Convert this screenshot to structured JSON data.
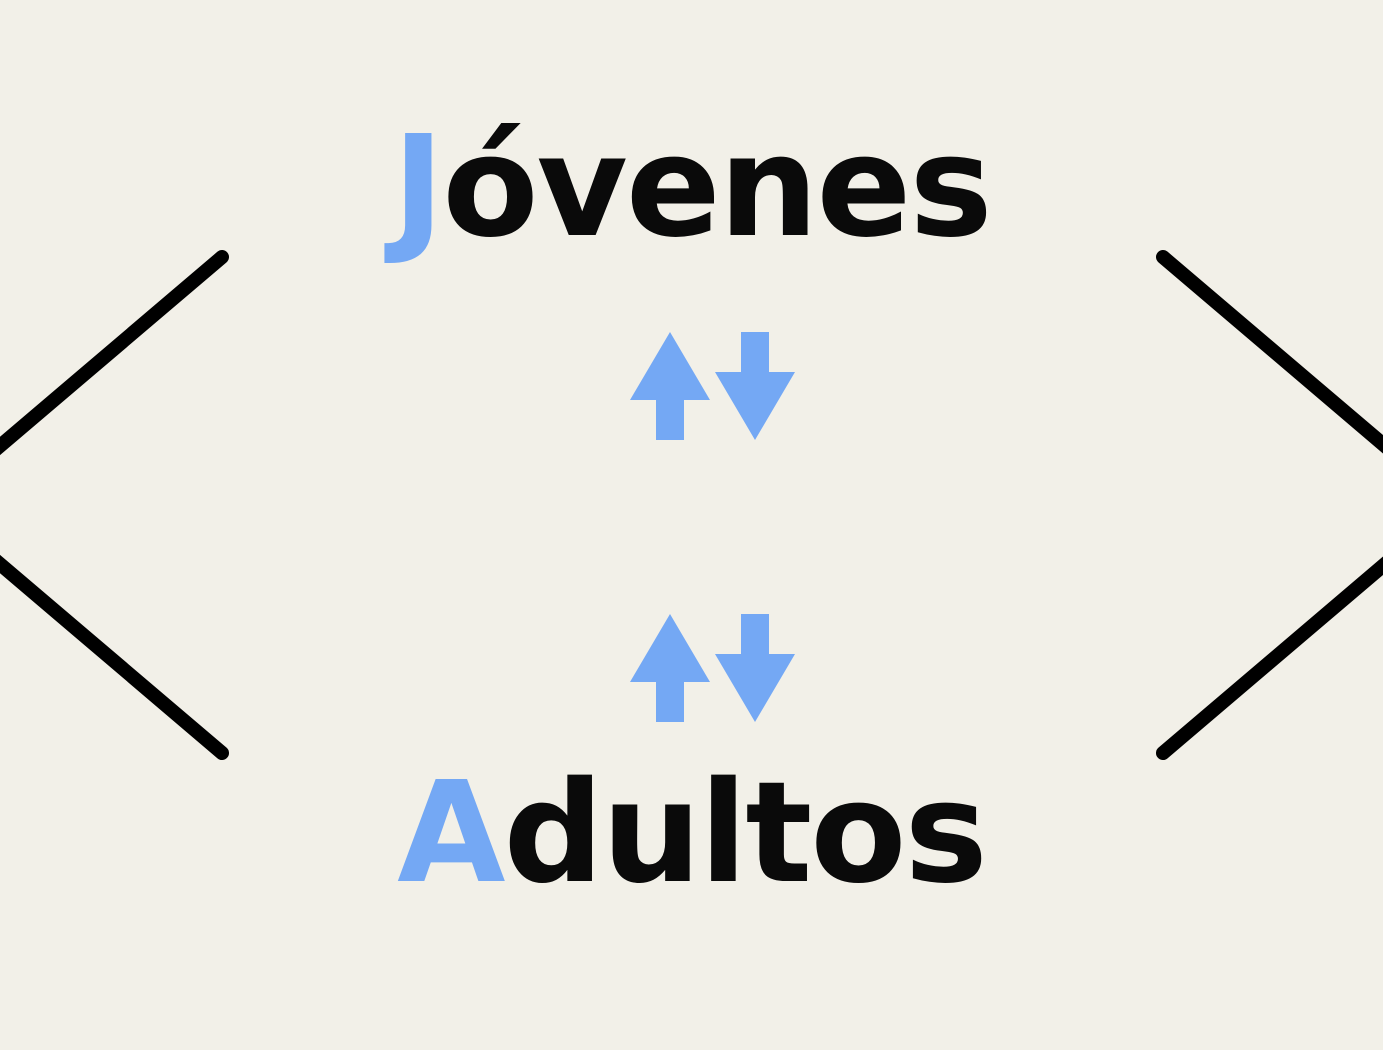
{
  "colors": {
    "background": "#f2f0e8",
    "text": "#0a0a0a",
    "accent": "#74a8f4",
    "lines": "#000000"
  },
  "top_word": {
    "initial": "J",
    "rest": "óvenes"
  },
  "bottom_word": {
    "initial": "A",
    "rest": "dultos"
  },
  "icons": {
    "upper_arrows": "up-down-arrows-icon",
    "lower_arrows": "up-down-arrows-icon",
    "left_bracket": "left-angle-bracket-icon",
    "right_bracket": "right-angle-bracket-icon"
  }
}
